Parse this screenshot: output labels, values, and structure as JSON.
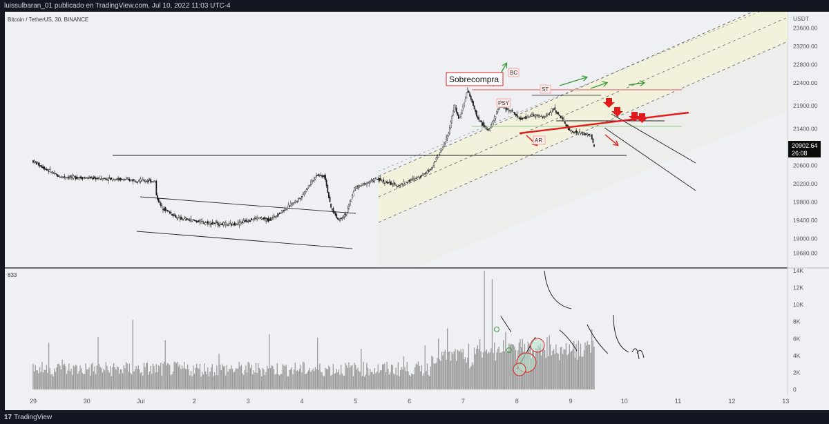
{
  "header": {
    "publish_line": "luissulbaran_01 publicado en TradingView.com, Jul 10, 2022 11:03 UTC-4"
  },
  "symbol_line": "Bitcoin / TetherUS, 30, BINANCE",
  "volume_label": "833",
  "footer": {
    "logo": "17",
    "brand": "TradingView"
  },
  "annotations": {
    "sobrecompra": "Sobrecompra",
    "bc": "BC",
    "st": "ST",
    "psy": "PSY",
    "ar": "AR"
  },
  "last_price": {
    "value": "20902.64",
    "countdown": "26:08"
  },
  "colors": {
    "background": "#131722",
    "chart_panel": "#eef0f3",
    "channel_fill": "#f2f1dc",
    "red": "#e11b1b",
    "green": "#3a9a3a",
    "pink": "#e8a0a0",
    "candle": "#1e1e1e",
    "volume_bar": "#9a9a9a"
  },
  "chart_data": [
    {
      "type": "candlestick",
      "price_axis": {
        "unit": "USDT",
        "ticks": [
          "23600.00",
          "23200.00",
          "22800.00",
          "22400.00",
          "21900.00",
          "21400.00",
          "21000.00",
          "20600.00",
          "20200.00",
          "19800.00",
          "19400.00",
          "19000.00",
          "18680.00"
        ],
        "range": [
          18500,
          23900
        ]
      },
      "time_axis": {
        "ticks": [
          "29",
          "30",
          "Jul",
          "2",
          "3",
          "4",
          "5",
          "6",
          "7",
          "8",
          "9",
          "10",
          "11",
          "12",
          "13"
        ]
      },
      "price_path": {
        "x": [
          0,
          0.5,
          1.5,
          2.3,
          2.1,
          2.0,
          2.0,
          2.1,
          2.4,
          2.7,
          3.2,
          3.7,
          4.2,
          4.4,
          4.6,
          5.0,
          5.3,
          5.45,
          5.55,
          5.7,
          5.85,
          6.0,
          6.4,
          6.8,
          7.2,
          7.4,
          7.5,
          7.6,
          7.75,
          7.85,
          7.95,
          8.1,
          8.3,
          8.5,
          8.7,
          8.9,
          9.1,
          9.3,
          9.55,
          9.7,
          9.9,
          10.0,
          10.2,
          10.4,
          10.45
        ],
        "y": [
          20700,
          20350,
          20300,
          20250,
          19900,
          19000,
          18800,
          20500,
          19700,
          19450,
          19350,
          19300,
          19450,
          19400,
          19550,
          19900,
          20400,
          20350,
          19700,
          19400,
          19550,
          20100,
          20300,
          20150,
          20350,
          20500,
          20700,
          20900,
          21300,
          21900,
          21600,
          22250,
          21600,
          21350,
          21900,
          21800,
          21600,
          21700,
          21650,
          21850,
          21550,
          21350,
          21300,
          21250,
          21000
        ]
      },
      "annotation_lines": {
        "resistance_ranges": [
          "19800-19520 (Jul 1 to 4.8)"
        ],
        "horizontal_levels": [
          20650,
          21800,
          21450
        ]
      }
    },
    {
      "type": "bar",
      "name": "volume",
      "axis": {
        "ticks": [
          "14K",
          "12K",
          "10K",
          "8K",
          "6K",
          "4K",
          "2K",
          "0"
        ],
        "range": [
          0,
          14000
        ]
      },
      "spikes": {
        "x": [
          0.0,
          0.3,
          0.55,
          1.2,
          1.85,
          2.45,
          3.45,
          4.4,
          5.3,
          6.1,
          6.9,
          7.3,
          7.55,
          7.7,
          7.85,
          8.1,
          8.4,
          8.55,
          8.8,
          9.2,
          9.6,
          9.9,
          10.3,
          10.4
        ],
        "values": [
          3000,
          5500,
          3500,
          6200,
          8200,
          5800,
          4200,
          6500,
          6100,
          4800,
          3900,
          5200,
          6000,
          7200,
          4800,
          5400,
          14000,
          13000,
          6800,
          5200,
          6400,
          4500,
          5200,
          7100
        ]
      }
    }
  ]
}
